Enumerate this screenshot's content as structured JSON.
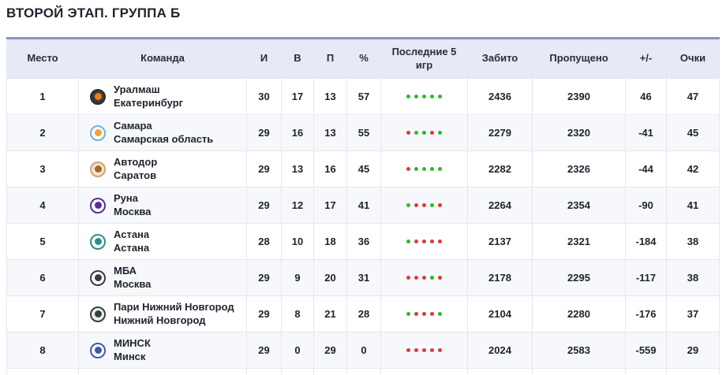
{
  "title": "ВТОРОЙ ЭТАП. ГРУППА Б",
  "colors": {
    "win_dot": "#2db92d",
    "loss_dot": "#e03a36",
    "header_bg": "#e7e9f6",
    "accent_border": "#8b90c8"
  },
  "table": {
    "columns": {
      "place": "Место",
      "team": "Команда",
      "games": "И",
      "wins": "В",
      "losses": "П",
      "percent": "%",
      "last5": "Последние 5 игр",
      "scored": "Забито",
      "conceded": "Пропущено",
      "diff": "+/-",
      "points": "Очки"
    },
    "rows": [
      {
        "place": "1",
        "name": "Уралмаш",
        "city": "Екатеринбург",
        "logo": {
          "name": "uralmash-logo",
          "bg": "#3a3a3a",
          "ring": "#2b2b2b",
          "dot": "#f07d1a"
        },
        "games": "30",
        "wins": "17",
        "losses": "13",
        "percent": "57",
        "last5": [
          "W",
          "W",
          "W",
          "W",
          "W"
        ],
        "scored": "2436",
        "conceded": "2390",
        "diff": "46",
        "points": "47"
      },
      {
        "place": "2",
        "name": "Самара",
        "city": "Самарская область",
        "logo": {
          "name": "samara-logo",
          "bg": "#ffffff",
          "ring": "#6db2dd",
          "dot": "#f0a23c"
        },
        "games": "29",
        "wins": "16",
        "losses": "13",
        "percent": "55",
        "last5": [
          "L",
          "W",
          "W",
          "L",
          "W"
        ],
        "scored": "2279",
        "conceded": "2320",
        "diff": "-41",
        "points": "45"
      },
      {
        "place": "3",
        "name": "Автодор",
        "city": "Саратов",
        "logo": {
          "name": "avtodor-logo",
          "bg": "#f3e3cf",
          "ring": "#c9a274",
          "dot": "#a5672c"
        },
        "games": "29",
        "wins": "13",
        "losses": "16",
        "percent": "45",
        "last5": [
          "L",
          "W",
          "W",
          "W",
          "W"
        ],
        "scored": "2282",
        "conceded": "2326",
        "diff": "-44",
        "points": "42"
      },
      {
        "place": "4",
        "name": "Руна",
        "city": "Москва",
        "logo": {
          "name": "runa-logo",
          "bg": "#ffffff",
          "ring": "#5a2d91",
          "dot": "#5a2d91"
        },
        "games": "29",
        "wins": "12",
        "losses": "17",
        "percent": "41",
        "last5": [
          "W",
          "L",
          "L",
          "W",
          "L"
        ],
        "scored": "2264",
        "conceded": "2354",
        "diff": "-90",
        "points": "41"
      },
      {
        "place": "5",
        "name": "Астана",
        "city": "Астана",
        "logo": {
          "name": "astana-logo",
          "bg": "#ffffff",
          "ring": "#2a9086",
          "dot": "#2a9086"
        },
        "games": "28",
        "wins": "10",
        "losses": "18",
        "percent": "36",
        "last5": [
          "W",
          "L",
          "L",
          "L",
          "L"
        ],
        "scored": "2137",
        "conceded": "2321",
        "diff": "-184",
        "points": "38"
      },
      {
        "place": "6",
        "name": "МБА",
        "city": "Москва",
        "logo": {
          "name": "mba-logo",
          "bg": "#ffffff",
          "ring": "#3b3b45",
          "dot": "#3b3b45"
        },
        "games": "29",
        "wins": "9",
        "losses": "20",
        "percent": "31",
        "last5": [
          "L",
          "L",
          "L",
          "W",
          "L"
        ],
        "scored": "2178",
        "conceded": "2295",
        "diff": "-117",
        "points": "38"
      },
      {
        "place": "7",
        "name": "Пари Нижний Новгород",
        "city": "Нижний Новгород",
        "logo": {
          "name": "pari-nn-logo",
          "bg": "#e9efe9",
          "ring": "#33413a",
          "dot": "#33413a"
        },
        "games": "29",
        "wins": "8",
        "losses": "21",
        "percent": "28",
        "last5": [
          "W",
          "L",
          "L",
          "L",
          "W"
        ],
        "scored": "2104",
        "conceded": "2280",
        "diff": "-176",
        "points": "37"
      },
      {
        "place": "8",
        "name": "МИНСК",
        "city": "Минск",
        "logo": {
          "name": "minsk-logo",
          "bg": "#ffffff",
          "ring": "#3f58a8",
          "dot": "#3f58a8"
        },
        "games": "29",
        "wins": "0",
        "losses": "29",
        "percent": "0",
        "last5": [
          "L",
          "L",
          "L",
          "L",
          "L"
        ],
        "scored": "2024",
        "conceded": "2583",
        "diff": "-559",
        "points": "29"
      }
    ]
  }
}
